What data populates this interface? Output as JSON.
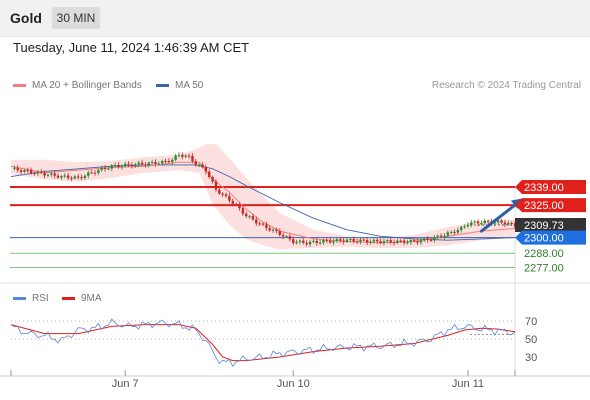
{
  "header": {
    "symbol": "Gold",
    "timeframe": "30 MIN"
  },
  "datetime": "Tuesday, June 11, 2024 1:46:39 AM CET",
  "legend": {
    "ma20_label": "MA 20 + Bollinger Bands",
    "ma50_label": "MA 50",
    "rsi_label": "RSI",
    "rsi_ma_label": "9MA"
  },
  "credit": "Research © 2024 Trading Central",
  "colors": {
    "candle_up": "#2e8b2e",
    "candle_down": "#c62828",
    "ma20": "#f08080",
    "bollinger_fill": "#fbd4d4",
    "ma50": "#3a66a8",
    "resistance": "#e0201b",
    "support": "#7cc47c",
    "current_price_tag": "#333333",
    "pivot_tag": "#1f6fe0",
    "arrow": "#2d5ea8",
    "rsi": "#5b86d6",
    "rsi_ma": "#e0201b"
  },
  "chart_data": [
    {
      "type": "candlestick",
      "x_ticks": [
        "Jun 7",
        "Jun 10",
        "Jun 11"
      ],
      "price_levels": [
        {
          "value": 2339.0,
          "label": "2339.00",
          "kind": "resistance"
        },
        {
          "value": 2325.0,
          "label": "2325.00",
          "kind": "resistance"
        },
        {
          "value": 2309.73,
          "label": "2309.73",
          "kind": "current"
        },
        {
          "value": 2300.0,
          "label": "2300.00",
          "kind": "pivot"
        },
        {
          "value": 2288.0,
          "label": "2288.00",
          "kind": "support"
        },
        {
          "value": 2277.0,
          "label": "2277.00",
          "kind": "support"
        }
      ],
      "close_path": [
        [
          0,
          2353
        ],
        [
          5,
          2351
        ],
        [
          10,
          2349
        ],
        [
          15,
          2347
        ],
        [
          20,
          2346
        ],
        [
          25,
          2351
        ],
        [
          30,
          2355
        ],
        [
          35,
          2356
        ],
        [
          40,
          2357
        ],
        [
          45,
          2358
        ],
        [
          48,
          2360
        ],
        [
          50,
          2364
        ],
        [
          53,
          2362
        ],
        [
          55,
          2357
        ],
        [
          58,
          2352
        ],
        [
          61,
          2337
        ],
        [
          66,
          2327
        ],
        [
          70,
          2317
        ],
        [
          75,
          2309
        ],
        [
          80,
          2303
        ],
        [
          84,
          2297
        ],
        [
          88,
          2296
        ],
        [
          92,
          2297
        ],
        [
          100,
          2298
        ],
        [
          110,
          2297
        ],
        [
          120,
          2297
        ],
        [
          125,
          2299
        ],
        [
          130,
          2303
        ],
        [
          134,
          2307
        ],
        [
          136,
          2311
        ],
        [
          140,
          2312
        ],
        [
          145,
          2312
        ],
        [
          148,
          2311
        ],
        [
          150,
          2309
        ]
      ],
      "ma20_path": [
        [
          0,
          2355
        ],
        [
          10,
          2350
        ],
        [
          20,
          2352
        ],
        [
          30,
          2354
        ],
        [
          40,
          2355
        ],
        [
          50,
          2358
        ],
        [
          56,
          2358
        ],
        [
          60,
          2345
        ],
        [
          65,
          2335
        ],
        [
          70,
          2322
        ],
        [
          75,
          2312
        ],
        [
          80,
          2305
        ],
        [
          90,
          2299
        ],
        [
          100,
          2297
        ],
        [
          110,
          2296
        ],
        [
          120,
          2297
        ],
        [
          130,
          2301
        ],
        [
          140,
          2305
        ],
        [
          150,
          2307
        ]
      ],
      "bb_upper": [
        [
          0,
          2360
        ],
        [
          10,
          2360
        ],
        [
          20,
          2358
        ],
        [
          30,
          2359
        ],
        [
          40,
          2362
        ],
        [
          50,
          2364
        ],
        [
          55,
          2368
        ],
        [
          58,
          2372
        ],
        [
          61,
          2372
        ],
        [
          65,
          2361
        ],
        [
          70,
          2346
        ],
        [
          75,
          2332
        ],
        [
          80,
          2319
        ],
        [
          90,
          2306
        ],
        [
          100,
          2301
        ],
        [
          110,
          2300
        ],
        [
          120,
          2302
        ],
        [
          130,
          2308
        ],
        [
          140,
          2313
        ],
        [
          150,
          2314
        ]
      ],
      "bb_lower": [
        [
          0,
          2349
        ],
        [
          10,
          2345
        ],
        [
          20,
          2343
        ],
        [
          30,
          2346
        ],
        [
          40,
          2350
        ],
        [
          50,
          2352
        ],
        [
          56,
          2350
        ],
        [
          60,
          2326
        ],
        [
          65,
          2310
        ],
        [
          70,
          2299
        ],
        [
          75,
          2294
        ],
        [
          80,
          2291
        ],
        [
          90,
          2292
        ],
        [
          100,
          2293
        ],
        [
          110,
          2292
        ],
        [
          120,
          2292
        ],
        [
          130,
          2294
        ],
        [
          140,
          2298
        ],
        [
          150,
          2300
        ]
      ],
      "ma50_path": [
        [
          0,
          2347
        ],
        [
          10,
          2351
        ],
        [
          20,
          2353
        ],
        [
          30,
          2355
        ],
        [
          40,
          2356
        ],
        [
          50,
          2356
        ],
        [
          55,
          2356
        ],
        [
          60,
          2353
        ],
        [
          65,
          2347
        ],
        [
          70,
          2340
        ],
        [
          80,
          2327
        ],
        [
          90,
          2315
        ],
        [
          100,
          2306
        ],
        [
          110,
          2301
        ],
        [
          120,
          2299
        ],
        [
          130,
          2298
        ],
        [
          140,
          2299
        ],
        [
          150,
          2300
        ]
      ],
      "forecast_arrow": {
        "from": [
          140,
          2305
        ],
        "to": [
          152,
          2330
        ]
      }
    },
    {
      "type": "line",
      "title": "RSI",
      "y_ticks": [
        70,
        50,
        30
      ],
      "rsi_path": [
        [
          0,
          64
        ],
        [
          5,
          56
        ],
        [
          10,
          54
        ],
        [
          15,
          48
        ],
        [
          20,
          60
        ],
        [
          25,
          62
        ],
        [
          30,
          68
        ],
        [
          35,
          64
        ],
        [
          40,
          66
        ],
        [
          45,
          68
        ],
        [
          50,
          66
        ],
        [
          55,
          60
        ],
        [
          58,
          48
        ],
        [
          61,
          30
        ],
        [
          63,
          24
        ],
        [
          66,
          24
        ],
        [
          70,
          28
        ],
        [
          75,
          30
        ],
        [
          80,
          34
        ],
        [
          85,
          36
        ],
        [
          90,
          38
        ],
        [
          95,
          40
        ],
        [
          100,
          41
        ],
        [
          110,
          42
        ],
        [
          120,
          46
        ],
        [
          125,
          50
        ],
        [
          130,
          60
        ],
        [
          135,
          64
        ],
        [
          140,
          61
        ],
        [
          145,
          59
        ],
        [
          150,
          57
        ]
      ],
      "rsi_ma_path": [
        [
          0,
          66
        ],
        [
          10,
          56
        ],
        [
          20,
          56
        ],
        [
          30,
          64
        ],
        [
          40,
          66
        ],
        [
          50,
          66
        ],
        [
          55,
          62
        ],
        [
          60,
          44
        ],
        [
          63,
          30
        ],
        [
          66,
          26
        ],
        [
          70,
          26
        ],
        [
          80,
          30
        ],
        [
          90,
          36
        ],
        [
          100,
          40
        ],
        [
          110,
          42
        ],
        [
          120,
          45
        ],
        [
          130,
          54
        ],
        [
          135,
          60
        ],
        [
          140,
          62
        ],
        [
          145,
          61
        ],
        [
          150,
          58
        ]
      ]
    }
  ]
}
